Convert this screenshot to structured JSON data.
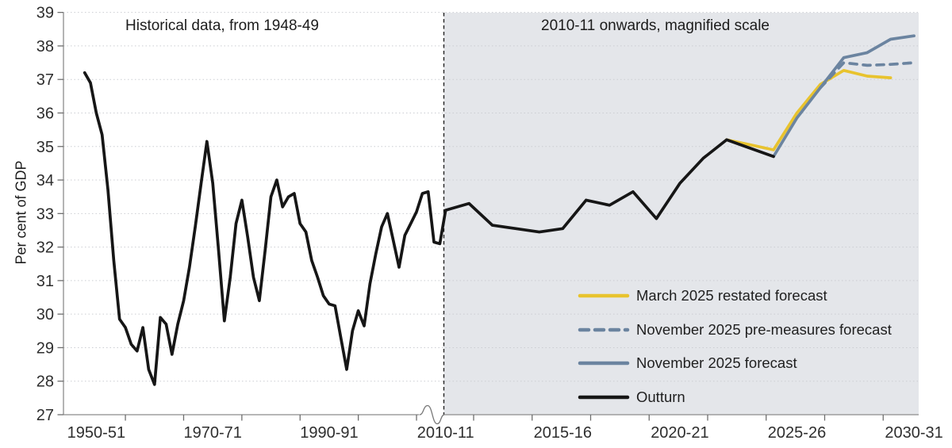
{
  "page": {
    "background": "#ffffff"
  },
  "chart_data": {
    "type": "line",
    "title": "",
    "ylabel": "Per cent of GDP",
    "ylim": [
      27,
      39
    ],
    "yticks": [
      27,
      28,
      29,
      30,
      31,
      32,
      33,
      34,
      35,
      36,
      37,
      38,
      39
    ],
    "grid": "dotted-horizontal",
    "annotations": {
      "left": "Historical data, from 1948-49",
      "right": "2010-11 onwards, magnified scale"
    },
    "x_axis": {
      "labels": [
        {
          "year": 1950,
          "label": "1950-51"
        },
        {
          "year": 1970,
          "label": "1970-71"
        },
        {
          "year": 1990,
          "label": "1990-91"
        },
        {
          "year": 2010,
          "label": "2010-11"
        },
        {
          "year": 2015,
          "label": "2015-16"
        },
        {
          "year": 2020,
          "label": "2020-21"
        },
        {
          "year": 2025,
          "label": "2025-26"
        },
        {
          "year": 2030,
          "label": "2030-31"
        }
      ],
      "axis_break_before_year": 2010
    },
    "magnified_region": {
      "from_label": "2010-11",
      "fill": "#e4e6ea"
    },
    "colors": {
      "march_forecast": "#e8c32e",
      "november_forecast": "#6b84a0",
      "outturn": "#161616",
      "divider": "#1a1a1a",
      "gridline": "#cbcdd2",
      "axis": "#8c8c8c",
      "tick": "#6e6e6e"
    },
    "series": [
      {
        "id": "march2025",
        "label": "March 2025 restated forecast",
        "color": "#e8c32e",
        "style": "solid",
        "points": [
          [
            2022,
            35.2
          ],
          [
            2023,
            35.05
          ],
          [
            2024,
            34.9
          ],
          [
            2025,
            36.0
          ],
          [
            2026,
            36.85
          ],
          [
            2027,
            37.27
          ],
          [
            2028,
            37.1
          ],
          [
            2029,
            37.05
          ]
        ]
      },
      {
        "id": "nov2025pre",
        "label": "November 2025 pre-measures forecast",
        "color": "#6b84a0",
        "style": "dashed",
        "points": [
          [
            2026,
            36.75
          ],
          [
            2027,
            37.5
          ],
          [
            2028,
            37.42
          ],
          [
            2029,
            37.45
          ],
          [
            2030,
            37.5
          ]
        ]
      },
      {
        "id": "nov2025",
        "label": "November 2025 forecast",
        "color": "#6b84a0",
        "style": "solid",
        "points": [
          [
            2024,
            34.7
          ],
          [
            2025,
            35.85
          ],
          [
            2026,
            36.75
          ],
          [
            2027,
            37.65
          ],
          [
            2028,
            37.8
          ],
          [
            2029,
            38.2
          ],
          [
            2030,
            38.3
          ]
        ]
      },
      {
        "id": "outturn",
        "label": "Outturn",
        "color": "#161616",
        "style": "solid",
        "points": [
          [
            1948,
            37.2
          ],
          [
            1949,
            36.9
          ],
          [
            1950,
            36.0
          ],
          [
            1951,
            35.35
          ],
          [
            1952,
            33.7
          ],
          [
            1953,
            31.6
          ],
          [
            1954,
            29.85
          ],
          [
            1955,
            29.6
          ],
          [
            1956,
            29.1
          ],
          [
            1957,
            28.9
          ],
          [
            1958,
            29.6
          ],
          [
            1959,
            28.35
          ],
          [
            1960,
            27.9
          ],
          [
            1961,
            29.9
          ],
          [
            1962,
            29.7
          ],
          [
            1963,
            28.8
          ],
          [
            1964,
            29.7
          ],
          [
            1965,
            30.4
          ],
          [
            1966,
            31.4
          ],
          [
            1967,
            32.6
          ],
          [
            1968,
            33.9
          ],
          [
            1969,
            35.15
          ],
          [
            1970,
            33.9
          ],
          [
            1971,
            31.9
          ],
          [
            1972,
            29.8
          ],
          [
            1973,
            31.1
          ],
          [
            1974,
            32.7
          ],
          [
            1975,
            33.4
          ],
          [
            1976,
            32.3
          ],
          [
            1977,
            31.1
          ],
          [
            1978,
            30.4
          ],
          [
            1979,
            31.9
          ],
          [
            1980,
            33.5
          ],
          [
            1981,
            34.0
          ],
          [
            1982,
            33.2
          ],
          [
            1983,
            33.5
          ],
          [
            1984,
            33.6
          ],
          [
            1985,
            32.7
          ],
          [
            1986,
            32.45
          ],
          [
            1987,
            31.6
          ],
          [
            1988,
            31.1
          ],
          [
            1989,
            30.55
          ],
          [
            1990,
            30.3
          ],
          [
            1991,
            30.25
          ],
          [
            1992,
            29.3
          ],
          [
            1993,
            28.35
          ],
          [
            1994,
            29.5
          ],
          [
            1995,
            30.1
          ],
          [
            1996,
            29.65
          ],
          [
            1997,
            30.9
          ],
          [
            1998,
            31.8
          ],
          [
            1999,
            32.6
          ],
          [
            2000,
            33.0
          ],
          [
            2001,
            32.2
          ],
          [
            2002,
            31.4
          ],
          [
            2003,
            32.35
          ],
          [
            2004,
            32.7
          ],
          [
            2005,
            33.05
          ],
          [
            2006,
            33.6
          ],
          [
            2007,
            33.65
          ],
          [
            2008,
            32.15
          ],
          [
            2009,
            32.1
          ],
          [
            2010,
            33.1
          ],
          [
            2011,
            33.3
          ],
          [
            2012,
            32.65
          ],
          [
            2013,
            32.55
          ],
          [
            2014,
            32.45
          ],
          [
            2015,
            32.55
          ],
          [
            2016,
            33.4
          ],
          [
            2017,
            33.25
          ],
          [
            2018,
            33.65
          ],
          [
            2019,
            32.85
          ],
          [
            2020,
            33.9
          ],
          [
            2021,
            34.65
          ],
          [
            2022,
            35.2
          ],
          [
            2023,
            34.95
          ],
          [
            2024,
            34.7
          ]
        ]
      }
    ],
    "legend_position": "inside-lower-right"
  }
}
